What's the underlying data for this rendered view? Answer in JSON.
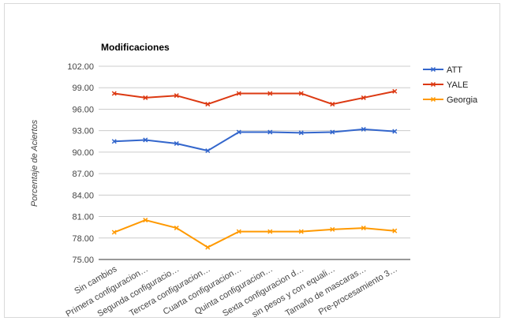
{
  "chart_data": {
    "type": "line",
    "title": "Modificaciones",
    "xlabel": "",
    "ylabel": "Porcentaje de Aciertos",
    "ylim": [
      75,
      102
    ],
    "yticks": [
      "102.00",
      "99.00",
      "96.00",
      "93.00",
      "90.00",
      "87.00",
      "84.00",
      "81.00",
      "78.00",
      "75.00"
    ],
    "grid": true,
    "legend_position": "right",
    "categories": [
      "Sin cambios",
      "Primera configuracion…",
      "Segunda configuracio…",
      "Tercera configuracion…",
      "Cuarta configuracion…",
      "Quinta configuracion…",
      "Sexta configuracion d…",
      "sin pesos y con equali…",
      "Tamaño de mascaras…",
      "Pre-procesamiento 3…"
    ],
    "series": [
      {
        "name": "ATT",
        "color": "#3366cc",
        "values": [
          91.5,
          91.7,
          91.2,
          90.2,
          92.8,
          92.8,
          92.7,
          92.8,
          93.2,
          92.9
        ]
      },
      {
        "name": "YALE",
        "color": "#dc3912",
        "values": [
          98.2,
          97.6,
          97.9,
          96.7,
          98.2,
          98.2,
          98.2,
          96.7,
          97.6,
          98.5
        ]
      },
      {
        "name": "Georgia",
        "color": "#ff9900",
        "values": [
          78.8,
          80.5,
          79.4,
          76.7,
          78.9,
          78.9,
          78.9,
          79.2,
          79.4,
          79.0
        ]
      }
    ]
  }
}
